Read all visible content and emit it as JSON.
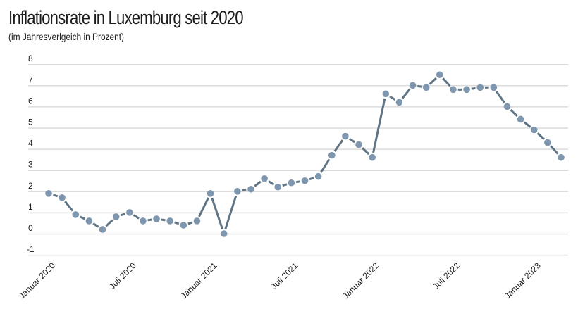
{
  "title": "Inflationsrate in Luxemburg seit 2020",
  "subtitle": "(im Jahresverlgeich in Prozent)",
  "colors": {
    "line": "#5f7585",
    "marker": "#7f97ae",
    "grid": "#dcdcdc"
  },
  "chart_data": {
    "type": "line",
    "title": "Inflationsrate in Luxemburg seit 2020",
    "subtitle": "(im Jahresverlgeich in Prozent)",
    "xlabel": "",
    "ylabel": "",
    "ylim": [
      -1,
      8
    ],
    "yticks": [
      8,
      7,
      6,
      5,
      4,
      3,
      2,
      1,
      0,
      -1
    ],
    "grid": true,
    "legend": "none",
    "xtick_labels": [
      {
        "index": 0,
        "label": "Januar 2020"
      },
      {
        "index": 6,
        "label": "Juli 2020"
      },
      {
        "index": 12,
        "label": "Januar 2021"
      },
      {
        "index": 18,
        "label": "Juli 2021"
      },
      {
        "index": 24,
        "label": "Januar 2022"
      },
      {
        "index": 30,
        "label": "Juli 2022"
      },
      {
        "index": 36,
        "label": "Januar 2023"
      }
    ],
    "x": [
      "2020-01",
      "2020-02",
      "2020-03",
      "2020-04",
      "2020-05",
      "2020-06",
      "2020-07",
      "2020-08",
      "2020-09",
      "2020-10",
      "2020-11",
      "2020-12",
      "2021-01",
      "2021-02",
      "2021-03",
      "2021-04",
      "2021-05",
      "2021-06",
      "2021-07",
      "2021-08",
      "2021-09",
      "2021-10",
      "2021-11",
      "2021-12",
      "2022-01",
      "2022-02",
      "2022-03",
      "2022-04",
      "2022-05",
      "2022-06",
      "2022-07",
      "2022-08",
      "2022-09",
      "2022-10",
      "2022-11",
      "2022-12",
      "2023-01",
      "2023-02",
      "2023-03"
    ],
    "series": [
      {
        "name": "Inflationsrate",
        "values": [
          1.9,
          1.7,
          0.9,
          0.6,
          0.2,
          0.8,
          1.0,
          0.6,
          0.7,
          0.6,
          0.4,
          0.6,
          1.9,
          0.0,
          2.0,
          2.1,
          2.6,
          2.2,
          2.4,
          2.5,
          2.7,
          3.7,
          4.6,
          4.2,
          3.6,
          6.6,
          6.2,
          7.0,
          6.9,
          7.5,
          6.8,
          6.8,
          6.9,
          6.9,
          6.0,
          5.4,
          4.9,
          4.3,
          3.6
        ]
      }
    ]
  }
}
